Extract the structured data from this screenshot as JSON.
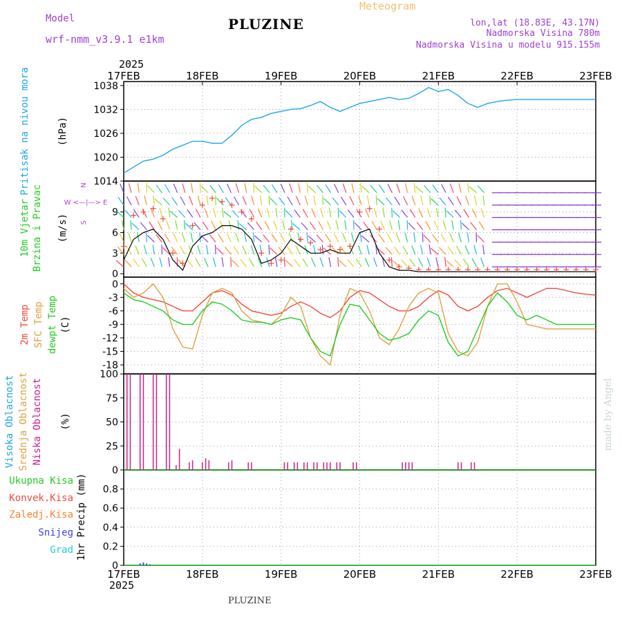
{
  "header": {
    "model_label": "Model",
    "model_name": "wrf-nmm_v3.9.1 e1km",
    "title": "PLUZINE",
    "product": "Meteogram",
    "coords": "lon,lat (18.83E, 43.17N)",
    "elevation": "Nadmorska Visina 780m",
    "model_elevation": "Nadmorska Visina u modelu 915.155m",
    "footer_title": "PLUZINE",
    "watermark": "made by Angel",
    "year": "2025"
  },
  "colors": {
    "pressure": "#1ea6e8",
    "temp2m": "#f04a3c",
    "sfc_temp": "#e0a040",
    "dewpoint": "#22cc22",
    "cloud_high": "#1ea6e8",
    "cloud_mid": "#e0a040",
    "cloud_low": "#cc1f8a",
    "precip_total": "#22cc22",
    "precip_conv": "#f04a3c",
    "precip_frozen": "#ff8030",
    "snow": "#4040e0",
    "hail": "#22cccc",
    "header_model": "#a040d0",
    "header_product": "#f0c070",
    "wind_legend": "#b040d0"
  },
  "chart_data": [
    {
      "type": "line",
      "panel": "pressure",
      "ylabel_vertical": "Pritisak na nivou mora",
      "unit": "(hPa)",
      "x_ticks": [
        "17FEB",
        "18FEB",
        "19FEB",
        "20FEB",
        "21FEB",
        "22FEB",
        "23FEB"
      ],
      "ylim": [
        1014,
        1039
      ],
      "y_ticks": [
        1014,
        1020,
        1026,
        1032,
        1038
      ],
      "grid": true,
      "series": [
        {
          "x": [
            0,
            3,
            6,
            9,
            12,
            15,
            18,
            21,
            24,
            27,
            30,
            33,
            36,
            39,
            42,
            45,
            48,
            51,
            54,
            57,
            60,
            63,
            66,
            69,
            72,
            75,
            78,
            81,
            84,
            87,
            90,
            93,
            96,
            99,
            102,
            105,
            108,
            111,
            114,
            117,
            120,
            123,
            126,
            129,
            132,
            135,
            138,
            141,
            144
          ],
          "y": [
            1016,
            1017.5,
            1019,
            1019.5,
            1020.5,
            1022,
            1023,
            1024,
            1024,
            1023.5,
            1023.5,
            1025.5,
            1028,
            1029.5,
            1030,
            1031,
            1031.5,
            1032,
            1032.2,
            1033,
            1034,
            1032.5,
            1031.5,
            1032.5,
            1033.5,
            1034,
            1034.5,
            1035,
            1034.5,
            1034.8,
            1036,
            1037.5,
            1036.5,
            1037,
            1035.5,
            1033.5,
            1032.5,
            1033.5,
            1034,
            1034.3,
            1034.5,
            1034.5,
            1034.5,
            1034.5,
            1034.5,
            1034.5,
            1034.5,
            1034.5,
            1034.5
          ]
        }
      ]
    },
    {
      "type": "line",
      "panel": "wind",
      "ylabel_vertical": [
        "10m Vjetar",
        "Brzina i Pravac"
      ],
      "unit": "(m/s)",
      "direction_legend": [
        "N",
        "W <—|—> E",
        "S"
      ],
      "ylim": [
        -0.5,
        13.5
      ],
      "y_ticks": [
        0,
        3,
        6,
        9
      ],
      "grid": true,
      "speed_x": [
        0,
        3,
        6,
        9,
        12,
        15,
        18,
        21,
        24,
        27,
        30,
        33,
        36,
        39,
        42,
        45,
        48,
        51,
        54,
        57,
        60,
        63,
        66,
        69,
        72,
        75,
        78,
        81,
        84,
        87,
        90,
        93,
        96,
        99,
        102,
        105,
        108,
        111,
        114,
        117,
        120,
        123,
        126,
        129,
        132,
        135,
        138,
        141,
        144
      ],
      "speed": [
        2,
        5,
        6,
        6.5,
        5,
        2,
        0.5,
        4,
        5.5,
        6,
        7,
        7,
        6.5,
        5,
        1.5,
        2,
        3,
        5,
        4,
        3,
        3,
        3.5,
        3,
        3,
        6,
        6.5,
        3,
        1,
        0.5,
        0.5,
        0.3,
        0.3,
        0.3,
        0.3,
        0.3,
        0.3,
        0.3,
        0.3,
        0.3,
        0.3,
        0.3,
        0.3,
        0.3,
        0.3,
        0.3,
        0.3,
        0.3,
        0.3,
        0.3
      ],
      "gust_x": [
        0,
        3,
        6,
        9,
        12,
        15,
        18,
        21,
        24,
        27,
        30,
        33,
        36,
        39,
        42,
        45,
        48,
        51,
        54,
        57,
        60,
        63,
        66,
        69,
        72,
        75,
        78,
        81,
        84,
        87,
        90,
        93,
        96,
        99,
        102,
        105,
        108,
        111,
        114,
        117,
        120,
        123,
        126,
        129,
        132,
        135,
        138,
        141,
        144
      ],
      "gust": [
        4,
        8.5,
        9,
        9.5,
        8,
        3,
        1.5,
        7,
        10,
        11,
        10.5,
        10,
        9,
        8,
        3,
        1.5,
        2,
        6.5,
        5,
        4.5,
        3.5,
        4,
        3.5,
        4,
        9,
        9.5,
        6.5,
        2,
        1,
        0.8,
        0.6,
        0.6,
        0.6,
        0.6,
        0.6,
        0.6,
        0.6,
        0.6,
        0.6,
        0.6,
        0.6,
        0.6,
        0.6,
        0.6,
        0.6,
        0.6,
        0.6,
        0.6,
        0.6
      ]
    },
    {
      "type": "line",
      "panel": "temperature",
      "ylabel_vertical": [
        "2m Temp",
        "SFC Temp",
        "dewpt Temp"
      ],
      "unit": "(C)",
      "ylim": [
        -20,
        1.5
      ],
      "y_ticks": [
        0,
        -3,
        -6,
        -9,
        -12,
        -15,
        -18
      ],
      "grid": true,
      "series": [
        {
          "name": "2m Temp",
          "x": [
            0,
            3,
            6,
            9,
            12,
            15,
            18,
            21,
            24,
            27,
            30,
            33,
            36,
            39,
            42,
            45,
            48,
            51,
            54,
            57,
            60,
            63,
            66,
            69,
            72,
            75,
            78,
            81,
            84,
            87,
            90,
            93,
            96,
            99,
            102,
            105,
            108,
            111,
            114,
            117,
            120,
            123,
            126,
            129,
            132,
            135,
            138,
            141,
            144
          ],
          "y": [
            0,
            -2,
            -3,
            -3.5,
            -4,
            -5,
            -6,
            -6,
            -4,
            -2,
            -1.5,
            -2.5,
            -4.5,
            -6,
            -6.5,
            -7,
            -6.5,
            -5,
            -4,
            -5,
            -6.5,
            -7.5,
            -6,
            -3,
            -1.5,
            -2,
            -3.5,
            -5,
            -6,
            -6,
            -5,
            -3,
            -1.5,
            -2.5,
            -5,
            -6,
            -5,
            -3,
            -1.5,
            -1,
            -2,
            -3,
            -2,
            -1,
            -1,
            -1.5,
            -2,
            -2.3,
            -2.5
          ]
        },
        {
          "name": "SFC Temp",
          "x": [
            0,
            3,
            6,
            9,
            12,
            15,
            18,
            21,
            24,
            27,
            30,
            33,
            36,
            39,
            42,
            45,
            48,
            51,
            54,
            57,
            60,
            63,
            66,
            69,
            72,
            75,
            78,
            81,
            84,
            87,
            90,
            93,
            96,
            99,
            102,
            105,
            108,
            111,
            114,
            117,
            120,
            123,
            126,
            129,
            132,
            135,
            138,
            141,
            144
          ],
          "y": [
            -1,
            -3,
            -2,
            0,
            -3,
            -10,
            -14,
            -14.5,
            -7,
            -2,
            -1,
            -2,
            -6,
            -8,
            -8.5,
            -9,
            -7,
            -3,
            -5,
            -12,
            -16,
            -18,
            -7,
            -1,
            -2,
            -6,
            -12,
            -13.5,
            -10,
            -5,
            -2,
            -1,
            -2,
            -11,
            -15,
            -16,
            -13,
            -5,
            0,
            0,
            -4,
            -9,
            -9.5,
            -10,
            -10,
            -10,
            -10,
            -10,
            -10
          ]
        },
        {
          "name": "dewpt Temp",
          "x": [
            0,
            3,
            6,
            9,
            12,
            15,
            18,
            21,
            24,
            27,
            30,
            33,
            36,
            39,
            42,
            45,
            48,
            51,
            54,
            57,
            60,
            63,
            66,
            69,
            72,
            75,
            78,
            81,
            84,
            87,
            90,
            93,
            96,
            99,
            102,
            105,
            108,
            111,
            114,
            117,
            120,
            123,
            126,
            129,
            132,
            135,
            138,
            141,
            144
          ],
          "y": [
            -2,
            -3.5,
            -4,
            -5,
            -6,
            -8,
            -9,
            -9,
            -6,
            -4,
            -4.5,
            -6,
            -8,
            -8.5,
            -8.5,
            -9,
            -8,
            -7.5,
            -8,
            -12,
            -15,
            -16,
            -9,
            -4.5,
            -5,
            -8,
            -11,
            -12.5,
            -12,
            -11,
            -8,
            -6,
            -7,
            -13,
            -16,
            -15,
            -10,
            -5,
            -2,
            -4,
            -7,
            -8,
            -7,
            -8,
            -9,
            -9,
            -9,
            -9,
            -9
          ]
        }
      ]
    },
    {
      "type": "bar",
      "panel": "clouds",
      "ylabel_vertical": [
        "Visoka Oblacnost",
        "Srednja Oblacnost",
        "Niska Oblacnost"
      ],
      "unit": "(%)",
      "ylim": [
        0,
        100
      ],
      "y_ticks": [
        0,
        25,
        50,
        75,
        100
      ],
      "grid": true,
      "low_cloud": {
        "x": [
          1,
          2,
          5,
          6,
          9,
          10,
          13,
          14,
          16,
          17,
          20,
          21,
          24,
          25,
          26,
          32,
          33,
          38,
          39,
          49,
          50,
          52,
          53,
          55,
          56,
          58,
          59,
          61,
          62,
          63,
          65,
          66,
          70,
          71,
          85,
          86,
          87,
          88,
          102,
          103,
          106,
          107
        ],
        "y": [
          100,
          100,
          100,
          100,
          100,
          100,
          100,
          100,
          5,
          22,
          8,
          10,
          8,
          12,
          10,
          8,
          10,
          8,
          8,
          8,
          8,
          8,
          8,
          8,
          8,
          8,
          8,
          8,
          8,
          8,
          8,
          8,
          8,
          8,
          8,
          8,
          8,
          8,
          8,
          8,
          8,
          8
        ]
      }
    },
    {
      "type": "bar",
      "panel": "precip",
      "ylabel_vertical": "1hr Precip (mm)",
      "legend_labels": [
        "Ukupna Kisa",
        "Konvek.Kisa",
        "Zaledj.Kisa",
        "Snijeg",
        "Grad"
      ],
      "ylim": [
        0,
        1
      ],
      "y_ticks": [
        0,
        0.2,
        0.4,
        0.6,
        0.8
      ],
      "grid": true,
      "snow": {
        "x": [
          5,
          6,
          7,
          8
        ],
        "y": [
          0.02,
          0.03,
          0.02,
          0.01
        ]
      }
    }
  ]
}
